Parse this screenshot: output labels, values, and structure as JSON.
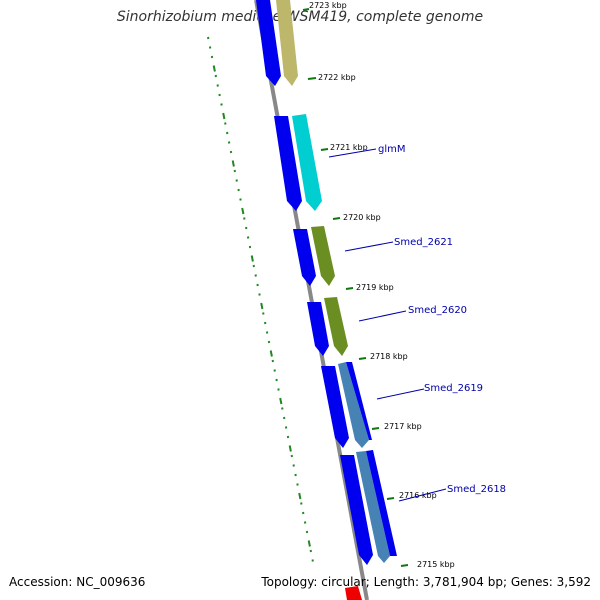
{
  "title": "Sinorhizobium medicae WSM419, complete genome",
  "accession_label": "Accession:",
  "accession": "NC_009636",
  "topology_label": "Topology:",
  "topology": "circular",
  "length_label": "Length:",
  "length": "3,781,904 bp",
  "genes_label": "Genes:",
  "genes": "3,592",
  "ticks": [
    "2723 kbp",
    "2722 kbp",
    "2721 kbp",
    "2720 kbp",
    "2719 kbp",
    "2718 kbp",
    "2717 kbp",
    "2716 kbp",
    "2715 kbp"
  ],
  "gene_labels": [
    "glmM",
    "Smed_2621",
    "Smed_2620",
    "Smed_2619",
    "Smed_2618"
  ],
  "colors": {
    "backbone": "#888888",
    "cds": "#0000ee",
    "tick": "#117711",
    "gc_skew": "#228822",
    "label": "#0000aa",
    "feature_tan": "#bdb76b",
    "feature_cyan": "#00ced1",
    "feature_olive": "#6b8e23",
    "feature_steel": "#4682b4",
    "feature_red": "#ee0000"
  }
}
